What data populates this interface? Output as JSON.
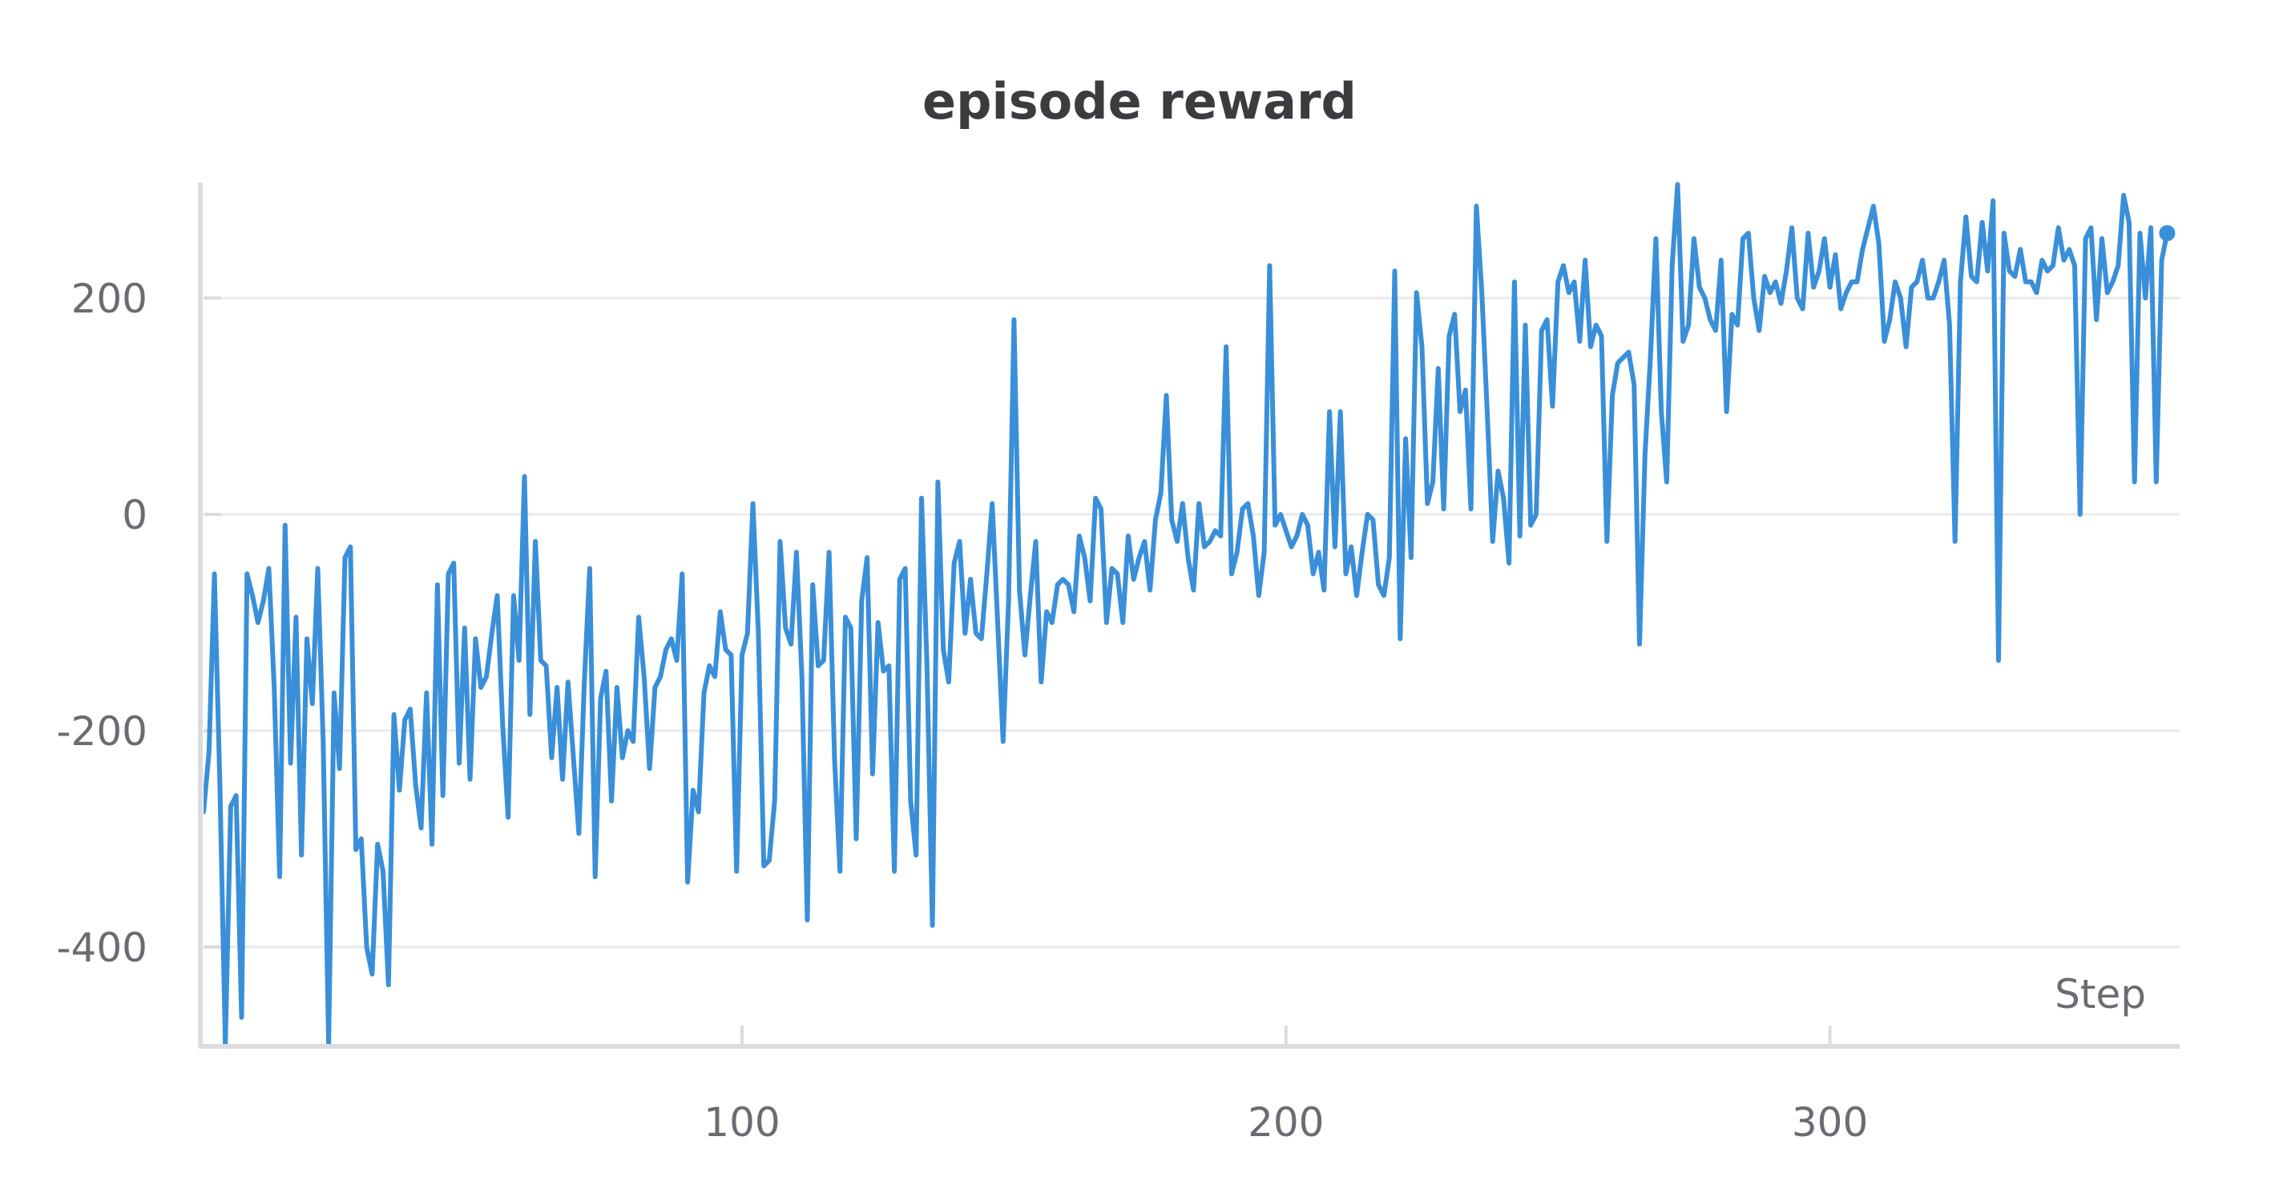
{
  "chart_data": {
    "type": "line",
    "title": "episode reward",
    "xlabel": "Step",
    "ylabel": "",
    "xlim": [
      1,
      366
    ],
    "ylim": [
      -495,
      305
    ],
    "x_ticks": [
      100,
      200,
      300
    ],
    "y_ticks": [
      -400,
      -200,
      0,
      200
    ],
    "x_tick_labels": [
      "100",
      "200",
      "300"
    ],
    "y_tick_labels": [
      "-400",
      "-200",
      "0",
      "200"
    ],
    "grid": true,
    "legend": "none",
    "series": [
      {
        "color": "#3a8fd9",
        "x_start": 1,
        "x_step": 1,
        "values": [
          -275,
          -220,
          -55,
          -250,
          -490,
          -270,
          -260,
          -465,
          -55,
          -75,
          -100,
          -80,
          -50,
          -160,
          -335,
          -10,
          -230,
          -95,
          -315,
          -115,
          -175,
          -50,
          -210,
          -490,
          -165,
          -235,
          -40,
          -30,
          -310,
          -300,
          -400,
          -425,
          -305,
          -330,
          -435,
          -185,
          -255,
          -190,
          -180,
          -250,
          -290,
          -165,
          -305,
          -65,
          -260,
          -55,
          -45,
          -230,
          -105,
          -245,
          -115,
          -160,
          -150,
          -110,
          -75,
          -195,
          -280,
          -75,
          -135,
          35,
          -185,
          -25,
          -135,
          -140,
          -225,
          -160,
          -245,
          -155,
          -225,
          -295,
          -155,
          -50,
          -335,
          -170,
          -145,
          -265,
          -160,
          -225,
          -200,
          -210,
          -95,
          -150,
          -235,
          -160,
          -150,
          -125,
          -115,
          -135,
          -55,
          -340,
          -255,
          -275,
          -165,
          -140,
          -150,
          -90,
          -125,
          -130,
          -330,
          -130,
          -110,
          10,
          -110,
          -325,
          -320,
          -265,
          -25,
          -105,
          -120,
          -35,
          -150,
          -375,
          -65,
          -140,
          -135,
          -35,
          -225,
          -330,
          -95,
          -105,
          -300,
          -80,
          -40,
          -240,
          -100,
          -145,
          -140,
          -330,
          -60,
          -50,
          -265,
          -315,
          15,
          -140,
          -380,
          30,
          -125,
          -155,
          -45,
          -25,
          -110,
          -60,
          -110,
          -115,
          -55,
          10,
          -100,
          -210,
          -80,
          180,
          -70,
          -130,
          -75,
          -25,
          -155,
          -90,
          -100,
          -65,
          -60,
          -65,
          -90,
          -20,
          -40,
          -80,
          15,
          5,
          -100,
          -50,
          -55,
          -100,
          -20,
          -60,
          -40,
          -25,
          -70,
          -5,
          20,
          110,
          -5,
          -25,
          10,
          -40,
          -70,
          10,
          -30,
          -25,
          -15,
          -20,
          155,
          -55,
          -35,
          5,
          10,
          -20,
          -75,
          -35,
          230,
          -10,
          0,
          -15,
          -30,
          -20,
          0,
          -10,
          -55,
          -35,
          -70,
          95,
          -30,
          95,
          -55,
          -30,
          -75,
          -35,
          0,
          -5,
          -65,
          -75,
          -40,
          225,
          -115,
          70,
          -40,
          205,
          155,
          10,
          30,
          135,
          5,
          165,
          185,
          95,
          115,
          5,
          285,
          205,
          95,
          -25,
          40,
          15,
          -45,
          215,
          -20,
          175,
          -10,
          0,
          170,
          180,
          100,
          215,
          230,
          205,
          215,
          160,
          235,
          155,
          175,
          165,
          -25,
          110,
          140,
          145,
          150,
          120,
          -120,
          55,
          145,
          255,
          95,
          30,
          230,
          305,
          160,
          175,
          255,
          210,
          200,
          180,
          170,
          235,
          95,
          185,
          175,
          255,
          260,
          200,
          170,
          220,
          205,
          215,
          195,
          225,
          265,
          200,
          190,
          260,
          210,
          225,
          255,
          210,
          240,
          190,
          205,
          215,
          215,
          245,
          265,
          285,
          250,
          160,
          180,
          215,
          200,
          155,
          210,
          215,
          235,
          200,
          200,
          215,
          235,
          175,
          -25,
          215,
          275,
          220,
          215,
          270,
          225,
          290,
          -135,
          260,
          225,
          220,
          245,
          215,
          215,
          205,
          235,
          225,
          230,
          265,
          235,
          245,
          230,
          0,
          255,
          265,
          180,
          255,
          205,
          215,
          230,
          295,
          270,
          30,
          260,
          200,
          265,
          30,
          235,
          260
        ]
      }
    ]
  }
}
